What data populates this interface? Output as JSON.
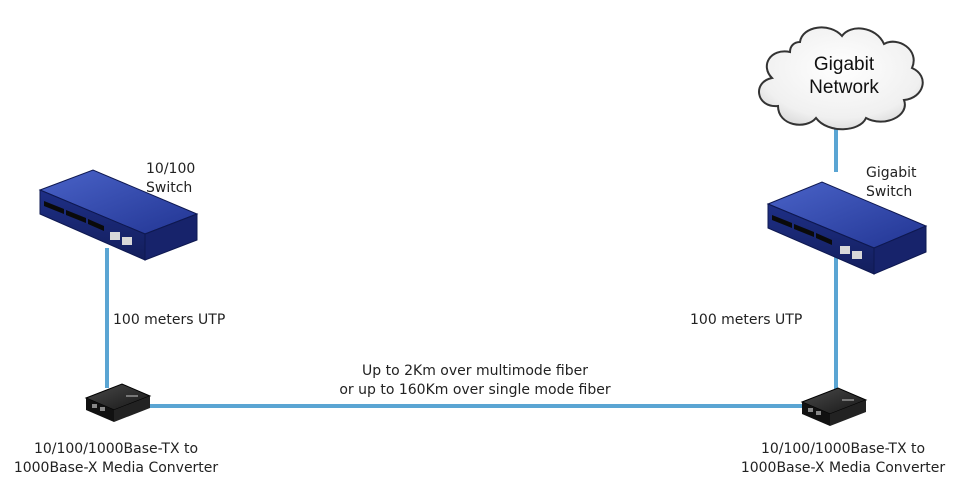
{
  "cloud": {
    "line1": "Gigabit",
    "line2": "Network"
  },
  "left_switch": {
    "line1": "10/100",
    "line2": "Switch"
  },
  "right_switch": {
    "line1": "Gigabit",
    "line2": "Switch"
  },
  "left_cable": "100 meters UTP",
  "right_cable": "100 meters UTP",
  "fiber": {
    "line1": "Up to 2Km over multimode fiber",
    "line2": "or up to 160Km over single mode fiber"
  },
  "left_converter": {
    "line1": "10/100/1000Base-TX to",
    "line2": "1000Base-X Media Converter"
  },
  "right_converter": {
    "line1": "10/100/1000Base-TX to",
    "line2": "1000Base-X Media Converter"
  },
  "colors": {
    "cable": "#5aa5d3",
    "switch_top": "#2a3f9e",
    "switch_side": "#1a2a78",
    "converter": "#1e1e1e"
  }
}
